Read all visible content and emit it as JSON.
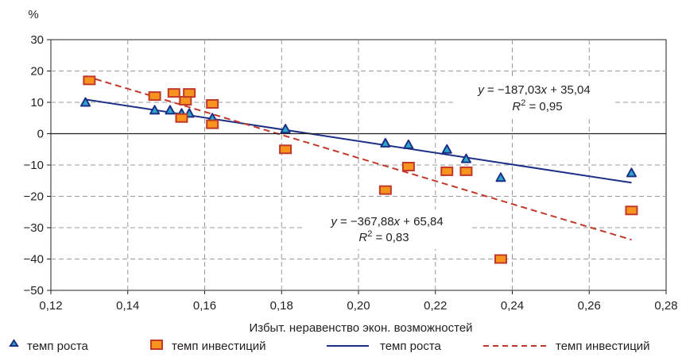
{
  "chart_data": {
    "type": "scatter",
    "ylabel": "%",
    "xlabel": "Избыт. неравенство экон. возможностей",
    "xlim": [
      0.12,
      0.28
    ],
    "ylim": [
      -50,
      30
    ],
    "x_ticks": [
      "0,12",
      "0,14",
      "0,16",
      "0,18",
      "0,20",
      "0,22",
      "0,24",
      "0,26",
      "0,28"
    ],
    "y_ticks": [
      "30",
      "20",
      "10",
      "0",
      "−10",
      "−20",
      "−30",
      "−40",
      "−50"
    ],
    "grid": true,
    "series": [
      {
        "name": "темп роста",
        "kind": "points",
        "marker": "triangle",
        "color": "#2aa7c9",
        "edge": "#1d2f86",
        "points": [
          [
            0.129,
            10
          ],
          [
            0.147,
            7.5
          ],
          [
            0.151,
            7.5
          ],
          [
            0.154,
            6.5
          ],
          [
            0.156,
            6.5
          ],
          [
            0.162,
            5
          ],
          [
            0.181,
            1.5
          ],
          [
            0.207,
            -3
          ],
          [
            0.213,
            -3.5
          ],
          [
            0.223,
            -5
          ],
          [
            0.228,
            -8
          ],
          [
            0.237,
            -14
          ],
          [
            0.271,
            -12.5
          ]
        ]
      },
      {
        "name": "темп инвестиций",
        "kind": "points",
        "marker": "square",
        "color": "#f7941d",
        "edge": "#c0392b",
        "points": [
          [
            0.13,
            17
          ],
          [
            0.147,
            12
          ],
          [
            0.152,
            13
          ],
          [
            0.154,
            5
          ],
          [
            0.155,
            10.5
          ],
          [
            0.156,
            13
          ],
          [
            0.162,
            9.5
          ],
          [
            0.162,
            3
          ],
          [
            0.181,
            -5
          ],
          [
            0.207,
            -18
          ],
          [
            0.213,
            -10.5
          ],
          [
            0.223,
            -12
          ],
          [
            0.228,
            -12
          ],
          [
            0.237,
            -40
          ],
          [
            0.271,
            -24.5
          ]
        ]
      },
      {
        "name": "темп роста",
        "kind": "trend",
        "style": "solid",
        "color": "#1d2f86",
        "slope": -187.03,
        "intercept": 35.04,
        "x_range": [
          0.129,
          0.271
        ]
      },
      {
        "name": "темп инвестиций",
        "kind": "trend",
        "style": "dashed",
        "color": "#c0392b",
        "slope": -367.88,
        "intercept": 65.84,
        "x_range": [
          0.129,
          0.271
        ]
      }
    ],
    "annotations": [
      {
        "eq_y": "y",
        "eq_mid": " = −187,03",
        "eq_x": "x",
        "eq_end": " + 35,04",
        "r_label": "R",
        "r_sup": "2",
        "r_value": " = 0,95"
      },
      {
        "eq_y": "y",
        "eq_mid": " = −367,88",
        "eq_x": "x",
        "eq_end": " + 65,84",
        "r_label": "R",
        "r_sup": "2",
        "r_value": " = 0,83"
      }
    ],
    "legend": {
      "placement": "bottom",
      "entries": [
        "темп роста",
        "темп инвестиций",
        "темп роста",
        "темп инвестиций"
      ]
    }
  }
}
